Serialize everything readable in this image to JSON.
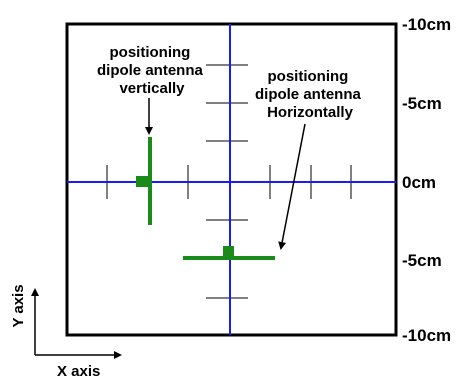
{
  "scale_labels": [
    "-10cm",
    "-5cm",
    "0cm",
    "-5cm",
    "-10cm"
  ],
  "annotations": {
    "vertical": [
      "positioning",
      "dipole antenna",
      "vertically"
    ],
    "horizontal": [
      "positioning",
      "dipole antenna",
      "Horizontally"
    ]
  },
  "axes": {
    "y_label": "Y axis",
    "x_label": "X axis"
  },
  "colors": {
    "crosshair": "#1a1aff",
    "antenna": "#1a8a1a",
    "ticks": "#808080",
    "frame": "#000000"
  }
}
